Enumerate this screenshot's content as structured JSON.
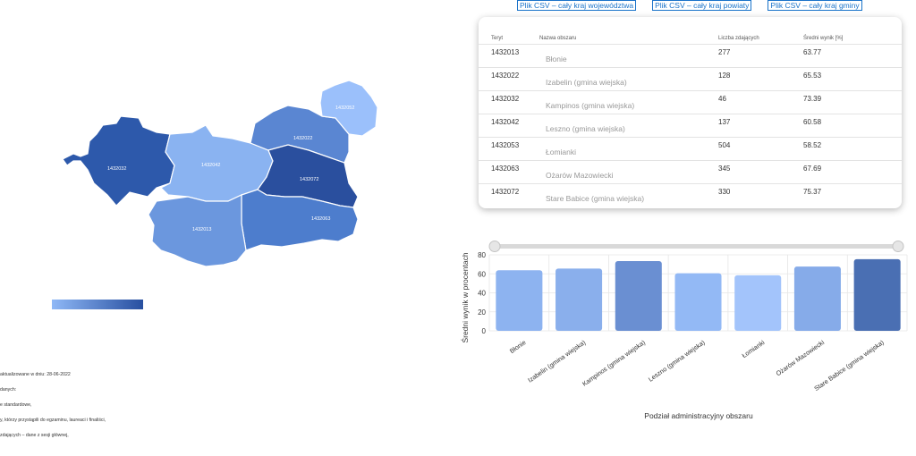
{
  "csv_links": [
    "Plik CSV – cały kraj województwa",
    "Plik CSV – cały kraj powiaty",
    "Plik CSV – cały kraj gminy"
  ],
  "map": {
    "regions": [
      {
        "teryt": "1432032",
        "color": "#2d59ab"
      },
      {
        "teryt": "1432042",
        "color": "#8ab3f1"
      },
      {
        "teryt": "1432022",
        "color": "#5a86d2"
      },
      {
        "teryt": "1432052",
        "color": "#9bc0fb"
      },
      {
        "teryt": "1432072",
        "color": "#2a4f9e"
      },
      {
        "teryt": "1432063",
        "color": "#4d7dcd"
      },
      {
        "teryt": "1432013",
        "color": "#6b97de"
      }
    ]
  },
  "notes": [
    "aktualizowane w dniu: 28-06-2022",
    "danych:",
    "e standardowe,",
    "y, którzy przystąpili do egzaminu, laureaci i finaliści,",
    "zdających – dane z sesji głównej,"
  ],
  "table": {
    "headers": {
      "teryt": "Teryt",
      "name": "Nazwa obszaru",
      "count": "Liczba zdających",
      "score": "Średni wynik [%]"
    },
    "rows": [
      {
        "teryt": "1432013",
        "name": "Błonie",
        "count": "277",
        "score": "63.77"
      },
      {
        "teryt": "1432022",
        "name": "Izabelin (gmina wiejska)",
        "count": "128",
        "score": "65.53"
      },
      {
        "teryt": "1432032",
        "name": "Kampinos (gmina wiejska)",
        "count": "46",
        "score": "73.39"
      },
      {
        "teryt": "1432042",
        "name": "Leszno (gmina wiejska)",
        "count": "137",
        "score": "60.58"
      },
      {
        "teryt": "1432053",
        "name": "Łomianki",
        "count": "504",
        "score": "58.52"
      },
      {
        "teryt": "1432063",
        "name": "Ożarów Mazowiecki",
        "count": "345",
        "score": "67.69"
      },
      {
        "teryt": "1432072",
        "name": "Stare Babice (gmina wiejska)",
        "count": "330",
        "score": "75.37"
      }
    ]
  },
  "chart_data": {
    "type": "bar",
    "categories": [
      "Błonie",
      "Izabelin (gmina wiejska)",
      "Kampinos (gmina wiejska)",
      "Leszno (gmina wiejska)",
      "Łomianki",
      "Ożarów Mazowiecki",
      "Stare Babice (gmina wiejska)"
    ],
    "values": [
      63.77,
      65.53,
      73.39,
      60.58,
      58.52,
      67.69,
      75.37
    ],
    "colors": [
      "#8db3f0",
      "#8aafec",
      "#6a8fd2",
      "#93b9f5",
      "#a3c4fb",
      "#86abe9",
      "#4a6fb3"
    ],
    "xlabel": "Podział administracyjny obszaru",
    "ylabel": "Średni wynik w procentach",
    "yticks": [
      0,
      20,
      40,
      60,
      80
    ],
    "ylim": [
      0,
      80
    ],
    "grid": true
  }
}
